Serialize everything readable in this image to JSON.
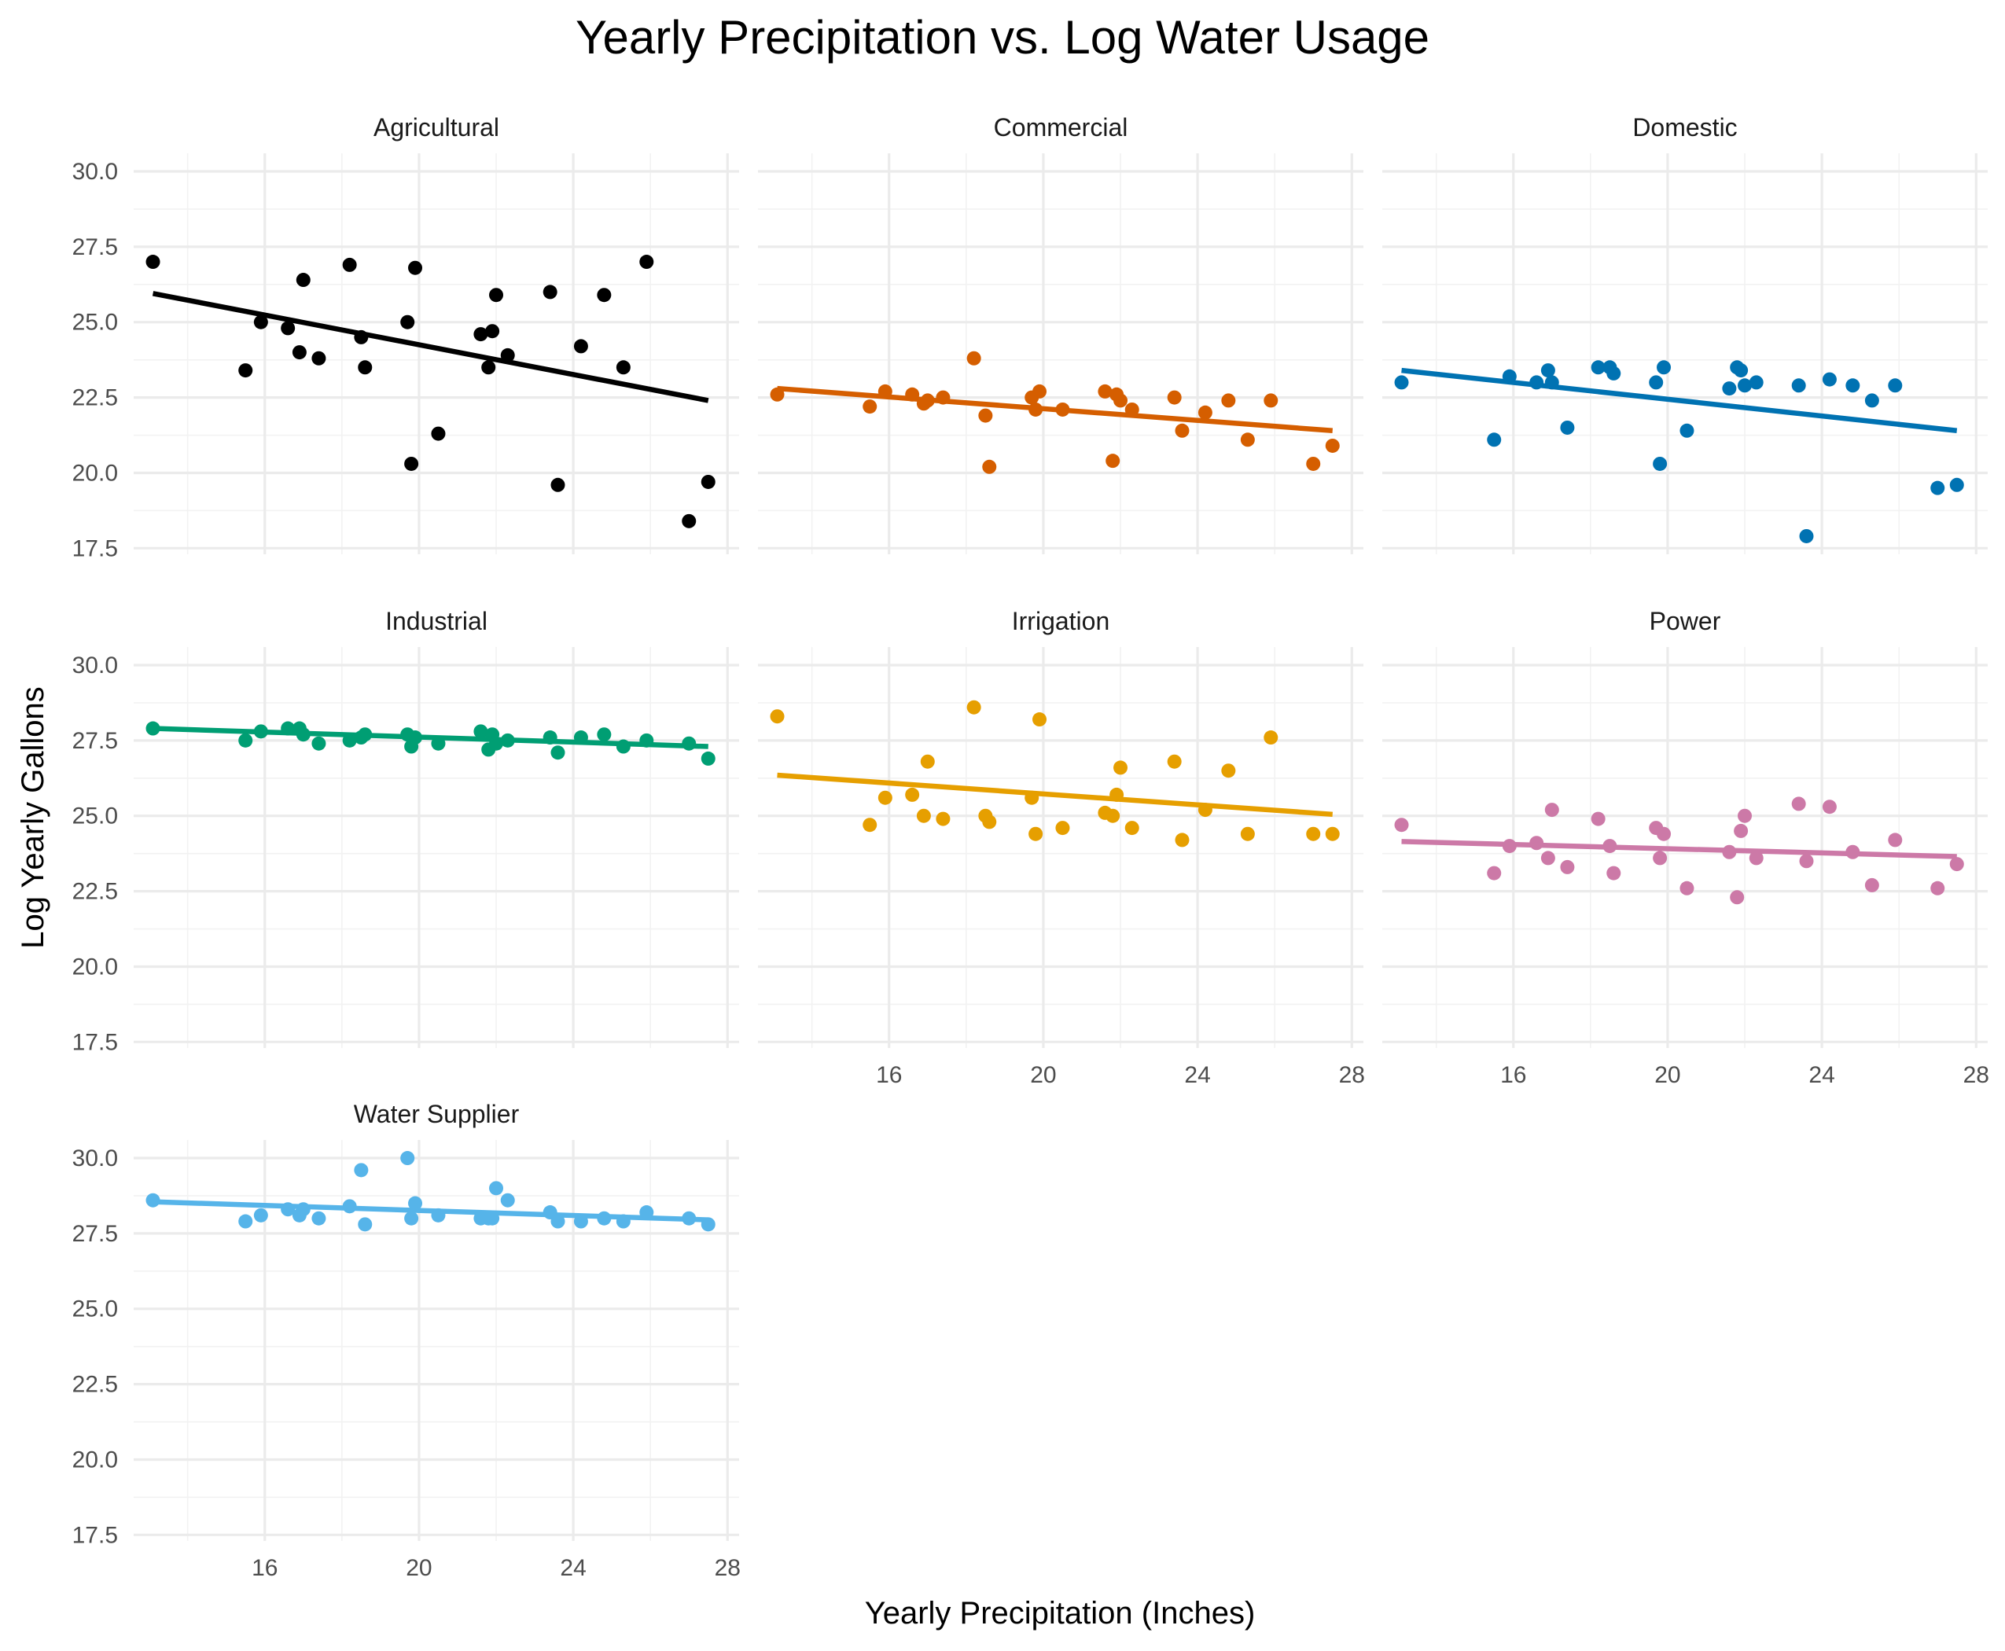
{
  "chart_data": {
    "type": "scatter",
    "title": "Yearly Precipitation vs. Log Water Usage",
    "xlabel": "Yearly Precipitation (Inches)",
    "ylabel": "Log Yearly Gallons",
    "xlim": [
      12.6,
      28.3
    ],
    "ylim": [
      17.3,
      30.6
    ],
    "x_ticks": [
      16,
      20,
      24,
      28
    ],
    "y_ticks": [
      17.5,
      20.0,
      22.5,
      25.0,
      27.5,
      30.0
    ],
    "grid": true,
    "legend": "none",
    "facets": [
      {
        "name": "Agricultural",
        "color": "#000000",
        "trend": [
          [
            13.1,
            25.95
          ],
          [
            27.5,
            22.4
          ]
        ],
        "x": [
          13.1,
          15.5,
          15.9,
          16.6,
          16.9,
          17.0,
          17.4,
          18.2,
          18.5,
          18.6,
          19.7,
          19.8,
          19.9,
          20.5,
          21.6,
          21.8,
          21.9,
          22.0,
          22.3,
          23.4,
          23.6,
          24.2,
          24.8,
          25.3,
          25.9,
          27.0,
          27.5
        ],
        "y": [
          27.0,
          23.4,
          25.0,
          24.8,
          24.0,
          26.4,
          23.8,
          26.9,
          24.5,
          23.5,
          25.0,
          20.3,
          26.8,
          21.3,
          24.6,
          23.5,
          24.7,
          25.9,
          23.9,
          26.0,
          19.6,
          24.2,
          25.9,
          23.5,
          27.0,
          18.4,
          19.7
        ]
      },
      {
        "name": "Commercial",
        "color": "#d55e00",
        "trend": [
          [
            13.1,
            22.8
          ],
          [
            27.5,
            21.4
          ]
        ],
        "x": [
          13.1,
          15.5,
          15.9,
          16.6,
          16.9,
          17.0,
          17.4,
          18.2,
          18.5,
          18.6,
          19.7,
          19.8,
          19.9,
          20.5,
          21.6,
          21.8,
          21.9,
          22.0,
          22.3,
          23.4,
          23.6,
          24.2,
          24.8,
          25.3,
          25.9,
          27.0,
          27.5
        ],
        "y": [
          22.6,
          22.2,
          22.7,
          22.6,
          22.3,
          22.4,
          22.5,
          23.8,
          21.9,
          20.2,
          22.5,
          22.1,
          22.7,
          22.1,
          22.7,
          20.4,
          22.6,
          22.4,
          22.1,
          22.5,
          21.4,
          22.0,
          22.4,
          21.1,
          22.4,
          20.3,
          20.9
        ]
      },
      {
        "name": "Domestic",
        "color": "#0072b2",
        "trend": [
          [
            13.1,
            23.4
          ],
          [
            27.5,
            21.4
          ]
        ],
        "x": [
          13.1,
          15.5,
          15.9,
          16.6,
          16.9,
          17.0,
          17.4,
          18.2,
          18.5,
          18.6,
          19.7,
          19.8,
          19.9,
          20.5,
          21.6,
          21.8,
          21.9,
          22.0,
          22.3,
          23.4,
          23.6,
          24.2,
          24.8,
          25.3,
          25.9,
          27.0,
          27.5
        ],
        "y": [
          23.0,
          21.1,
          23.2,
          23.0,
          23.4,
          23.0,
          21.5,
          23.5,
          23.5,
          23.3,
          23.0,
          20.3,
          23.5,
          21.4,
          22.8,
          23.5,
          23.4,
          22.9,
          23.0,
          22.9,
          17.9,
          23.1,
          22.9,
          22.4,
          22.9,
          19.5,
          19.6
        ]
      },
      {
        "name": "Industrial",
        "color": "#009e73",
        "trend": [
          [
            13.1,
            27.9
          ],
          [
            27.5,
            27.3
          ]
        ],
        "x": [
          13.1,
          15.5,
          15.9,
          16.6,
          16.9,
          17.0,
          17.4,
          18.2,
          18.5,
          18.6,
          19.7,
          19.8,
          19.9,
          20.5,
          21.6,
          21.8,
          21.9,
          22.0,
          22.3,
          23.4,
          23.6,
          24.2,
          24.8,
          25.3,
          25.9,
          27.0,
          27.5
        ],
        "y": [
          27.9,
          27.5,
          27.8,
          27.9,
          27.9,
          27.7,
          27.4,
          27.5,
          27.6,
          27.7,
          27.7,
          27.3,
          27.6,
          27.4,
          27.8,
          27.2,
          27.7,
          27.4,
          27.5,
          27.6,
          27.1,
          27.6,
          27.7,
          27.3,
          27.5,
          27.4,
          26.9
        ]
      },
      {
        "name": "Irrigation",
        "color": "#e69f00",
        "trend": [
          [
            13.1,
            26.35
          ],
          [
            27.5,
            25.05
          ]
        ],
        "x": [
          13.1,
          15.5,
          15.9,
          16.6,
          16.9,
          17.0,
          17.4,
          18.2,
          18.5,
          18.6,
          19.7,
          19.8,
          19.9,
          20.5,
          21.6,
          21.8,
          21.9,
          22.0,
          22.3,
          23.4,
          23.6,
          24.2,
          24.8,
          25.3,
          25.9,
          27.0,
          27.5
        ],
        "y": [
          28.3,
          24.7,
          25.6,
          25.7,
          25.0,
          26.8,
          24.9,
          28.6,
          25.0,
          24.8,
          25.6,
          24.4,
          28.2,
          24.6,
          25.1,
          25.0,
          25.7,
          26.6,
          24.6,
          26.8,
          24.2,
          25.2,
          26.5,
          24.4,
          27.6,
          24.4,
          24.4
        ]
      },
      {
        "name": "Power",
        "color": "#cc79a7",
        "trend": [
          [
            13.1,
            24.15
          ],
          [
            27.5,
            23.65
          ]
        ],
        "x": [
          13.1,
          15.5,
          15.9,
          16.6,
          16.9,
          17.0,
          17.4,
          18.2,
          18.5,
          18.6,
          19.7,
          19.8,
          19.9,
          20.5,
          21.6,
          21.8,
          21.9,
          22.0,
          22.3,
          23.4,
          23.6,
          24.2,
          24.8,
          25.3,
          25.9,
          27.0,
          27.5
        ],
        "y": [
          24.7,
          23.1,
          24.0,
          24.1,
          23.6,
          25.2,
          23.3,
          24.9,
          24.0,
          23.1,
          24.6,
          23.6,
          24.4,
          22.6,
          23.8,
          22.3,
          24.5,
          25.0,
          23.6,
          25.4,
          23.5,
          25.3,
          23.8,
          22.7,
          24.2,
          22.6,
          23.4
        ]
      },
      {
        "name": "Water Supplier",
        "color": "#56b4e9",
        "trend": [
          [
            13.1,
            28.55
          ],
          [
            27.5,
            27.95
          ]
        ],
        "x": [
          13.1,
          15.5,
          15.9,
          16.6,
          16.9,
          17.0,
          17.4,
          18.2,
          18.5,
          18.6,
          19.7,
          19.8,
          19.9,
          20.5,
          21.6,
          21.8,
          21.9,
          22.0,
          22.3,
          23.4,
          23.6,
          24.2,
          24.8,
          25.3,
          25.9,
          27.0,
          27.5
        ],
        "y": [
          28.6,
          27.9,
          28.1,
          28.3,
          28.1,
          28.3,
          28.0,
          28.4,
          29.6,
          27.8,
          30.0,
          28.0,
          28.5,
          28.1,
          28.0,
          28.0,
          28.0,
          29.0,
          28.6,
          28.2,
          27.9,
          27.9,
          28.0,
          27.9,
          28.2,
          28.0,
          27.8
        ]
      }
    ]
  }
}
